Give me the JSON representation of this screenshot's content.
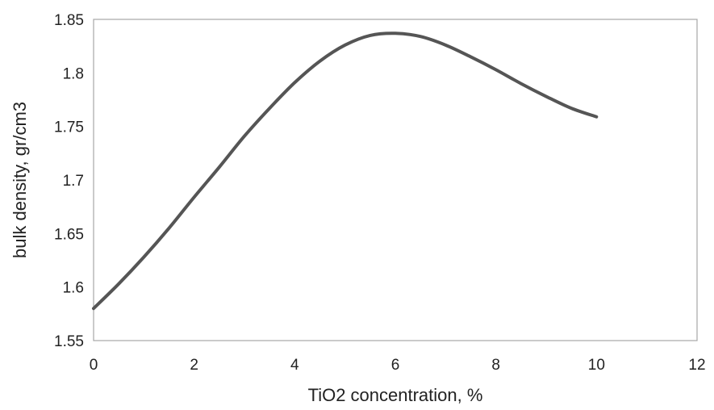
{
  "chart_data": {
    "type": "line",
    "title": "",
    "xlabel": "TiO2 concentration, %",
    "ylabel": "bulk density, gr/cm3",
    "xlim": [
      0,
      12
    ],
    "ylim": [
      1.55,
      1.85
    ],
    "x_ticks": [
      "0",
      "2",
      "4",
      "6",
      "8",
      "10",
      "12"
    ],
    "y_ticks": [
      "1.85",
      "1.8",
      "1.75",
      "1.7",
      "1.65",
      "1.6",
      "1.55"
    ],
    "grid": false,
    "legend": "none",
    "line_color": "#555555",
    "series": [
      {
        "x": [
          0,
          0.5,
          1,
          1.5,
          2,
          2.5,
          3,
          3.5,
          4,
          4.5,
          5,
          5.5,
          6,
          6.5,
          7,
          7.5,
          8,
          8.5,
          9,
          9.5,
          10
        ],
        "values": [
          1.58,
          1.603,
          1.628,
          1.655,
          1.684,
          1.712,
          1.741,
          1.767,
          1.791,
          1.811,
          1.826,
          1.835,
          1.837,
          1.834,
          1.826,
          1.815,
          1.803,
          1.79,
          1.778,
          1.767,
          1.759
        ]
      }
    ]
  }
}
